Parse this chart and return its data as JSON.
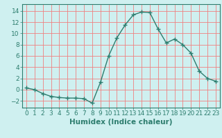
{
  "x": [
    0,
    1,
    2,
    3,
    4,
    5,
    6,
    7,
    8,
    9,
    10,
    11,
    12,
    13,
    14,
    15,
    16,
    17,
    18,
    19,
    20,
    21,
    22,
    23
  ],
  "y": [
    0.3,
    0.0,
    -0.7,
    -1.2,
    -1.4,
    -1.5,
    -1.5,
    -1.6,
    -2.4,
    1.3,
    6.0,
    9.2,
    11.5,
    13.3,
    13.8,
    13.7,
    10.8,
    8.3,
    9.0,
    8.0,
    6.5,
    3.3,
    2.0,
    1.5
  ],
  "line_color": "#2d7d6e",
  "marker": "+",
  "marker_size": 4,
  "marker_linewidth": 1.0,
  "line_width": 1.0,
  "background_color": "#cff0f0",
  "grid_color": "#f08080",
  "xlabel": "Humidex (Indice chaleur)",
  "xlim": [
    -0.5,
    23.5
  ],
  "ylim": [
    -3.2,
    15.2
  ],
  "yticks": [
    -2,
    0,
    2,
    4,
    6,
    8,
    10,
    12,
    14
  ],
  "xticks": [
    0,
    1,
    2,
    3,
    4,
    5,
    6,
    7,
    8,
    9,
    10,
    11,
    12,
    13,
    14,
    15,
    16,
    17,
    18,
    19,
    20,
    21,
    22,
    23
  ],
  "tick_color": "#2d7d6e",
  "font_size": 6.5,
  "xlabel_fontsize": 7.5
}
